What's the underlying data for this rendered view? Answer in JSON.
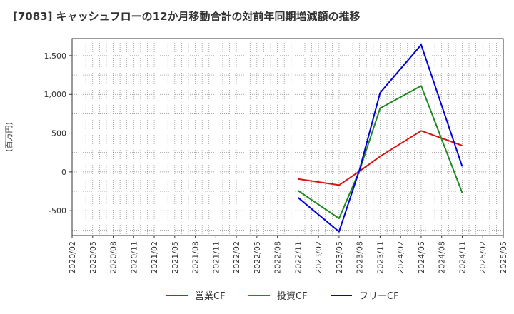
{
  "chart_data": {
    "type": "line",
    "title": "[7083]  キャッシュフローの12か月移動合計の対前年同期増減額の推移",
    "ylabel": "(百万円)",
    "xlabel": "",
    "ylim": [
      -820,
      1720
    ],
    "yticks": [
      -500,
      0,
      500,
      1000,
      1500
    ],
    "ytick_labels": [
      "-500",
      "0",
      "500",
      "1,000",
      "1,500"
    ],
    "categories": [
      "2020/02",
      "2020/05",
      "2020/08",
      "2020/11",
      "2021/02",
      "2021/05",
      "2021/08",
      "2021/11",
      "2022/02",
      "2022/05",
      "2022/08",
      "2022/11",
      "2023/02",
      "2023/05",
      "2023/08",
      "2023/11",
      "2024/02",
      "2024/05",
      "2024/08",
      "2024/11",
      "2025/02",
      "2025/05"
    ],
    "grid": true,
    "legend": "bottom",
    "series": [
      {
        "name": "営業CF",
        "color": "#dd1111",
        "values": [
          null,
          null,
          null,
          null,
          null,
          null,
          null,
          null,
          null,
          null,
          null,
          -90,
          null,
          -170,
          10,
          200,
          null,
          530,
          null,
          340,
          null,
          null
        ]
      },
      {
        "name": "投資CF",
        "color": "#228822",
        "values": [
          null,
          null,
          null,
          null,
          null,
          null,
          null,
          null,
          null,
          null,
          null,
          -240,
          null,
          -600,
          20,
          820,
          null,
          1110,
          null,
          -270,
          null,
          null
        ]
      },
      {
        "name": "フリーCF",
        "color": "#0000dd",
        "values": [
          null,
          null,
          null,
          null,
          null,
          null,
          null,
          null,
          null,
          null,
          null,
          -330,
          null,
          -770,
          30,
          1020,
          null,
          1640,
          null,
          70,
          null,
          null
        ]
      }
    ]
  }
}
